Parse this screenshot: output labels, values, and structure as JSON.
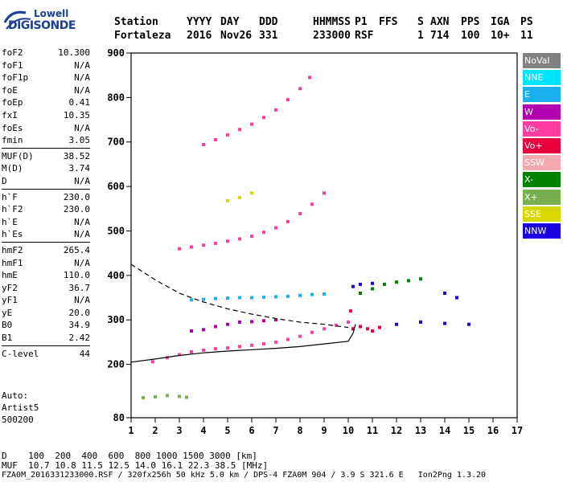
{
  "logo": {
    "top": "Lowell",
    "bottom": "DIGISONDE"
  },
  "header": {
    "row1": [
      "Station",
      "YYYY",
      "DAY",
      "DDD",
      "HHMMSS",
      "P1",
      "FFS",
      "S",
      "AXN",
      "PPS",
      "IGA",
      "PS"
    ],
    "row2": [
      "Fortaleza",
      "2016",
      "Nov26",
      "331",
      "233000",
      "RSF",
      "",
      "1",
      "714",
      "100",
      "10+",
      "11"
    ]
  },
  "params": {
    "group1": [
      {
        "k": "foF2",
        "v": "10.300"
      },
      {
        "k": "foF1",
        "v": "N/A"
      },
      {
        "k": "foF1p",
        "v": "N/A"
      },
      {
        "k": "foE",
        "v": "N/A"
      },
      {
        "k": "foEp",
        "v": "0.41"
      },
      {
        "k": "fxI",
        "v": "10.35"
      },
      {
        "k": "foEs",
        "v": "N/A"
      },
      {
        "k": "fmin",
        "v": "3.05"
      }
    ],
    "group2": [
      {
        "k": "MUF(D)",
        "v": "38.52"
      },
      {
        "k": "M(D)",
        "v": "3.74"
      },
      {
        "k": "D",
        "v": "N/A"
      }
    ],
    "group3": [
      {
        "k": "h`F",
        "v": "230.0"
      },
      {
        "k": "h`F2",
        "v": "230.0"
      },
      {
        "k": "h`E",
        "v": "N/A"
      },
      {
        "k": "h`Es",
        "v": "N/A"
      }
    ],
    "group4": [
      {
        "k": "hmF2",
        "v": "265.4"
      },
      {
        "k": "hmF1",
        "v": "N/A"
      },
      {
        "k": "hmE",
        "v": "110.0"
      },
      {
        "k": "yF2",
        "v": "36.7"
      },
      {
        "k": "yF1",
        "v": "N/A"
      },
      {
        "k": "yE",
        "v": "20.0"
      },
      {
        "k": "B0",
        "v": "34.9"
      },
      {
        "k": "B1",
        "v": "2.42"
      }
    ],
    "group5": [
      {
        "k": "C-level",
        "v": "44"
      }
    ]
  },
  "auto": [
    "Auto:",
    "Artist5",
    "500200"
  ],
  "legend": [
    {
      "label": "NoVal",
      "color": "#808080"
    },
    {
      "label": "NNE",
      "color": "#00e5ff"
    },
    {
      "label": "E",
      "color": "#1ab0f0"
    },
    {
      "label": "W",
      "color": "#b000b0"
    },
    {
      "label": "Vo-",
      "color": "#ff3ca0"
    },
    {
      "label": "Vo+",
      "color": "#e8003c"
    },
    {
      "label": "SSW",
      "color": "#f6a8b0"
    },
    {
      "label": "X-",
      "color": "#008000"
    },
    {
      "label": "X+",
      "color": "#78b050"
    },
    {
      "label": "SSE",
      "color": "#d8d800"
    },
    {
      "label": "NNW",
      "color": "#1a00e0"
    }
  ],
  "footer": {
    "line1": "D    100  200  400  600  800 1000 1500 3000 [km]",
    "line2": "MUF  10.7 10.8 11.5 12.5 14.0 16.1 22.3 38.5 [MHz]",
    "line3": "FZA0M_2016331233000.RSF / 320fx256h 50 kHz 5.0 km / DPS-4 FZA0M 904 / 3.9 S 321.6 E   Ion2Png 1.3.20"
  },
  "chart_data": {
    "type": "scatter",
    "title": "",
    "xlabel": "",
    "ylabel": "",
    "xlim": [
      1,
      17
    ],
    "ylim": [
      80,
      900
    ],
    "x_ticks": [
      "1",
      "2",
      "3",
      "4",
      "5",
      "6",
      "7",
      "8",
      "9",
      "10",
      "11",
      "12",
      "13",
      "14",
      "15",
      "16",
      "17"
    ],
    "y_ticks": [
      "80",
      "200",
      "300",
      "400",
      "500",
      "600",
      "700",
      "800",
      "900"
    ],
    "series": [
      {
        "color": "#ff3ca0",
        "points": [
          [
            1.9,
            206
          ],
          [
            2.5,
            215
          ],
          [
            3,
            222
          ],
          [
            3.5,
            228
          ],
          [
            4,
            232
          ],
          [
            4.5,
            235
          ],
          [
            5,
            237
          ],
          [
            5.5,
            240
          ],
          [
            6,
            243
          ],
          [
            6.5,
            246
          ],
          [
            7,
            250
          ],
          [
            7.5,
            256
          ],
          [
            8,
            263
          ],
          [
            8.5,
            272
          ],
          [
            9,
            280
          ],
          [
            9.5,
            288
          ],
          [
            10,
            295
          ]
        ]
      },
      {
        "color": "#ff3ca0",
        "points": [
          [
            3,
            460
          ],
          [
            3.5,
            464
          ],
          [
            4,
            468
          ],
          [
            4.5,
            472
          ],
          [
            5,
            477
          ],
          [
            5.5,
            482
          ],
          [
            6,
            488
          ],
          [
            6.5,
            497
          ],
          [
            7,
            507
          ],
          [
            7.5,
            521
          ],
          [
            8,
            539
          ],
          [
            8.5,
            560
          ],
          [
            9,
            585
          ]
        ]
      },
      {
        "color": "#ff3ca0",
        "points": [
          [
            4,
            694
          ],
          [
            4.5,
            705
          ],
          [
            5,
            716
          ],
          [
            5.5,
            728
          ],
          [
            6,
            740
          ],
          [
            6.5,
            755
          ],
          [
            7,
            772
          ],
          [
            7.5,
            795
          ],
          [
            8,
            820
          ],
          [
            8.4,
            845
          ]
        ]
      },
      {
        "color": "#1ab0f0",
        "points": [
          [
            3.5,
            345
          ],
          [
            4,
            346
          ],
          [
            4.5,
            348
          ],
          [
            5,
            349
          ],
          [
            5.5,
            350
          ],
          [
            6,
            350
          ],
          [
            6.5,
            351
          ],
          [
            7,
            352
          ],
          [
            7.5,
            353
          ],
          [
            8,
            355
          ],
          [
            8.5,
            357
          ],
          [
            9,
            358
          ]
        ]
      },
      {
        "color": "#b000b0",
        "points": [
          [
            3.5,
            275
          ],
          [
            4,
            278
          ],
          [
            4.5,
            285
          ],
          [
            5,
            290
          ],
          [
            5.5,
            295
          ],
          [
            6,
            296
          ],
          [
            6.5,
            298
          ],
          [
            7,
            300
          ]
        ]
      },
      {
        "color": "#008000",
        "points": [
          [
            10.5,
            360
          ],
          [
            11,
            370
          ],
          [
            11.5,
            380
          ],
          [
            12,
            385
          ],
          [
            12.5,
            388
          ],
          [
            13,
            392
          ]
        ]
      },
      {
        "color": "#1a00e0",
        "points": [
          [
            10.2,
            375
          ],
          [
            10.5,
            380
          ],
          [
            11,
            382
          ],
          [
            12,
            290
          ],
          [
            13,
            295
          ],
          [
            14,
            292
          ],
          [
            15,
            290
          ],
          [
            14,
            360
          ],
          [
            14.5,
            350
          ]
        ]
      },
      {
        "color": "#e8003c",
        "points": [
          [
            10.2,
            280
          ],
          [
            10.5,
            285
          ],
          [
            10.8,
            280
          ],
          [
            11,
            275
          ],
          [
            11.3,
            283
          ],
          [
            10.1,
            320
          ]
        ]
      },
      {
        "color": "#78b050",
        "points": [
          [
            1.5,
            125
          ],
          [
            2,
            127
          ],
          [
            2.5,
            130
          ],
          [
            3,
            128
          ],
          [
            3.3,
            126
          ]
        ]
      },
      {
        "color": "#d8d800",
        "points": [
          [
            5,
            568
          ],
          [
            5.5,
            575
          ],
          [
            6,
            585
          ]
        ]
      }
    ],
    "curves": [
      {
        "style": "solid",
        "points": [
          [
            1,
            205
          ],
          [
            2,
            212
          ],
          [
            3,
            220
          ],
          [
            4,
            226
          ],
          [
            5,
            230
          ],
          [
            6,
            233
          ],
          [
            7,
            236
          ],
          [
            8,
            240
          ],
          [
            9,
            246
          ],
          [
            10,
            252
          ],
          [
            10.2,
            270
          ],
          [
            10.3,
            290
          ]
        ]
      },
      {
        "style": "dashed",
        "points": [
          [
            1,
            425
          ],
          [
            2,
            390
          ],
          [
            3,
            360
          ],
          [
            4,
            340
          ],
          [
            5,
            325
          ],
          [
            6,
            313
          ],
          [
            7,
            303
          ],
          [
            8,
            295
          ],
          [
            9,
            290
          ],
          [
            10,
            283
          ]
        ]
      }
    ]
  }
}
